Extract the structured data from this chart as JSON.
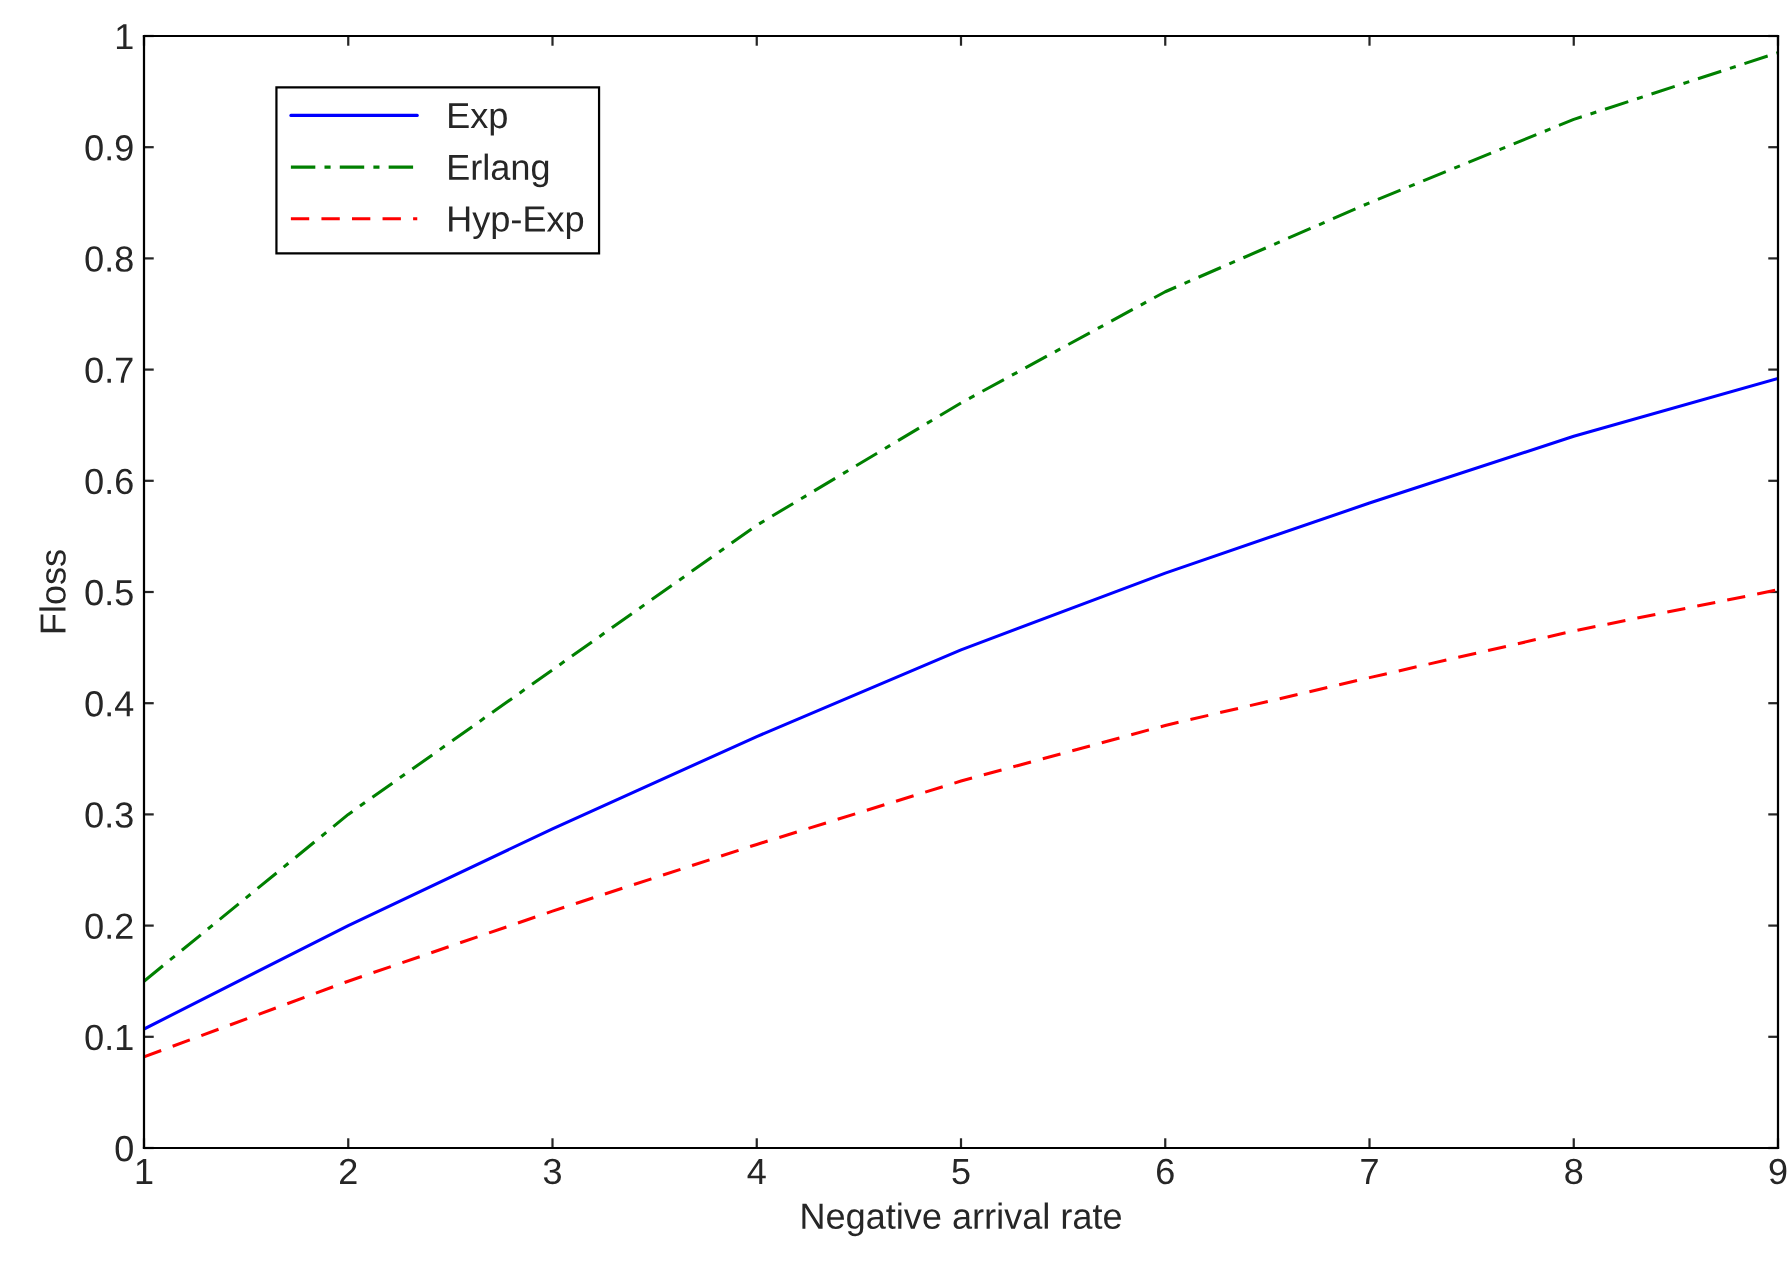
{
  "chart_data": {
    "type": "line",
    "xlabel": "Negative arrival rate",
    "ylabel": "Floss",
    "x": [
      1,
      2,
      3,
      4,
      5,
      6,
      7,
      8,
      9
    ],
    "series": [
      {
        "name": "Exp",
        "color": "#0000ff",
        "line_style": "solid",
        "values": [
          0.107,
          0.2,
          0.287,
          0.37,
          0.448,
          0.517,
          0.58,
          0.64,
          0.692
        ]
      },
      {
        "name": "Erlang",
        "color": "#008000",
        "line_style": "dashdot",
        "values": [
          0.15,
          0.3,
          0.43,
          0.56,
          0.67,
          0.77,
          0.85,
          0.925,
          0.985
        ]
      },
      {
        "name": "Hyp-Exp",
        "color": "#ff0000",
        "line_style": "dashed",
        "values": [
          0.082,
          0.15,
          0.213,
          0.273,
          0.33,
          0.38,
          0.423,
          0.465,
          0.502
        ]
      }
    ],
    "xlim": [
      1,
      9
    ],
    "ylim": [
      0,
      1
    ],
    "xticks": [
      1,
      2,
      3,
      4,
      5,
      6,
      7,
      8,
      9
    ],
    "yticks": [
      0,
      0.1,
      0.2,
      0.3,
      0.4,
      0.5,
      0.6,
      0.7,
      0.8,
      0.9,
      1
    ],
    "grid": false,
    "legend": "top left",
    "marker": "none"
  }
}
